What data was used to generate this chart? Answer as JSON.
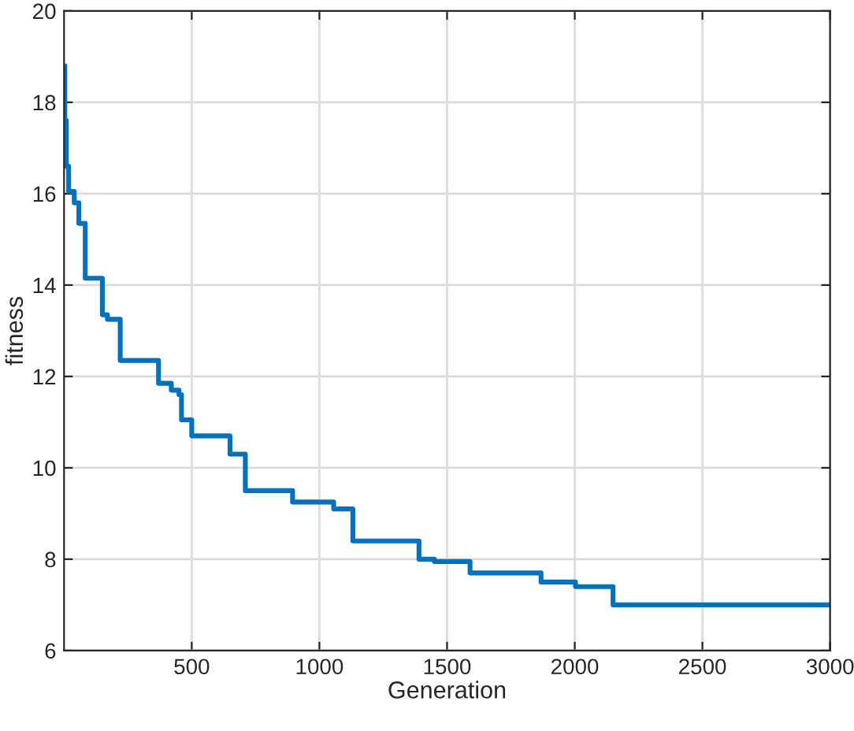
{
  "chart_data": {
    "type": "step",
    "xlabel": "Generation",
    "ylabel": "fitness",
    "x": [
      1,
      3,
      9,
      18,
      40,
      58,
      83,
      150,
      170,
      220,
      370,
      420,
      450,
      460,
      500,
      650,
      710,
      895,
      1056,
      1131,
      1390,
      1450,
      1590,
      1868,
      2003,
      2150,
      3000
    ],
    "series": [
      {
        "color": "#0072bd",
        "values": [
          18.8,
          17.6,
          16.6,
          16.05,
          15.8,
          15.35,
          14.15,
          13.35,
          13.25,
          12.35,
          11.85,
          11.7,
          11.6,
          11.05,
          10.7,
          10.3,
          9.5,
          9.25,
          9.1,
          8.4,
          8.0,
          7.95,
          7.7,
          7.5,
          7.4,
          7.0,
          7.0
        ]
      }
    ],
    "xlim": [
      0,
      3000
    ],
    "xticks": [
      500,
      1000,
      1500,
      2000,
      2500,
      3000
    ],
    "ylim": [
      6,
      20
    ],
    "yticks": [
      6,
      8,
      10,
      12,
      14,
      16,
      18,
      20
    ],
    "grid": true,
    "legend": false
  }
}
